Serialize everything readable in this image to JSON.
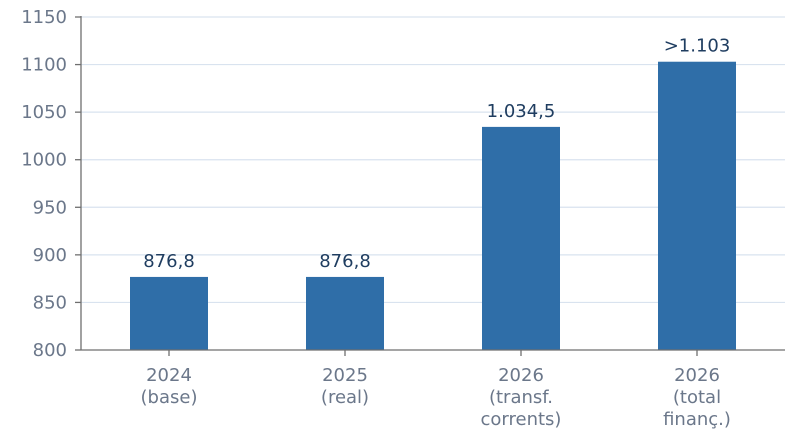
{
  "chart_data": {
    "type": "bar",
    "categories": [
      [
        "2024",
        "(base)"
      ],
      [
        "2025",
        "(real)"
      ],
      [
        "2026",
        "(transf.",
        "corrents)"
      ],
      [
        "2026",
        "(total",
        "finanç.)"
      ]
    ],
    "values": [
      876.8,
      876.8,
      1034.5,
      1103
    ],
    "data_labels": [
      "876,8",
      "876,8",
      "1.034,5",
      ">1.103"
    ],
    "yticks": [
      "800",
      "850",
      "900",
      "950",
      "1000",
      "1050",
      "1100",
      "1150"
    ],
    "ylim": [
      800,
      1150
    ],
    "grid": true,
    "bar_color": "#2f6ea8",
    "title": "",
    "xlabel": "",
    "ylabel": ""
  }
}
